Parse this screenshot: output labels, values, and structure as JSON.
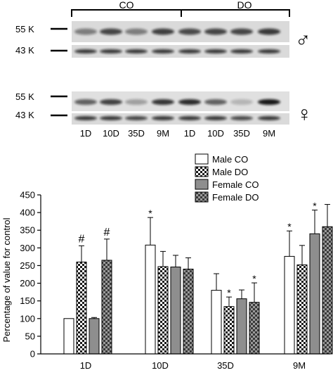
{
  "blot": {
    "groups": [
      "CO",
      "DO"
    ],
    "male_markers": [
      "55 K",
      "43 K"
    ],
    "female_markers": [
      "55 K",
      "43 K"
    ],
    "male_symbol": "♂",
    "female_symbol": "♀",
    "lanes": [
      "1D",
      "10D",
      "35D",
      "9M",
      "1D",
      "10D",
      "35D",
      "9M"
    ]
  },
  "chart_data": {
    "type": "bar",
    "ylabel": "Percentage of value for control",
    "xlabel": "",
    "ylim": [
      0,
      450
    ],
    "yticks": [
      0,
      50,
      100,
      150,
      200,
      250,
      300,
      350,
      400,
      450
    ],
    "categories": [
      "1D",
      "10D",
      "35D",
      "9M"
    ],
    "legend_position": "top-right",
    "series": [
      {
        "name": "Male CO",
        "fill": "white",
        "values": [
          100,
          308,
          180,
          276
        ],
        "errors": [
          0,
          78,
          47,
          72
        ],
        "marks": [
          "",
          "*",
          "",
          "*"
        ]
      },
      {
        "name": "Male DO",
        "fill": "checker",
        "values": [
          260,
          247,
          134,
          252
        ],
        "errors": [
          46,
          43,
          27,
          55
        ],
        "marks": [
          "#",
          "",
          "*",
          ""
        ]
      },
      {
        "name": "Female CO",
        "fill": "gray",
        "values": [
          100,
          246,
          156,
          340
        ],
        "errors": [
          3,
          33,
          25,
          67
        ],
        "marks": [
          "",
          "",
          "",
          "*"
        ]
      },
      {
        "name": "Female DO",
        "fill": "dchecker",
        "values": [
          265,
          240,
          146,
          360
        ],
        "errors": [
          60,
          32,
          55,
          63
        ],
        "marks": [
          "#",
          "",
          "*",
          ""
        ]
      }
    ]
  }
}
